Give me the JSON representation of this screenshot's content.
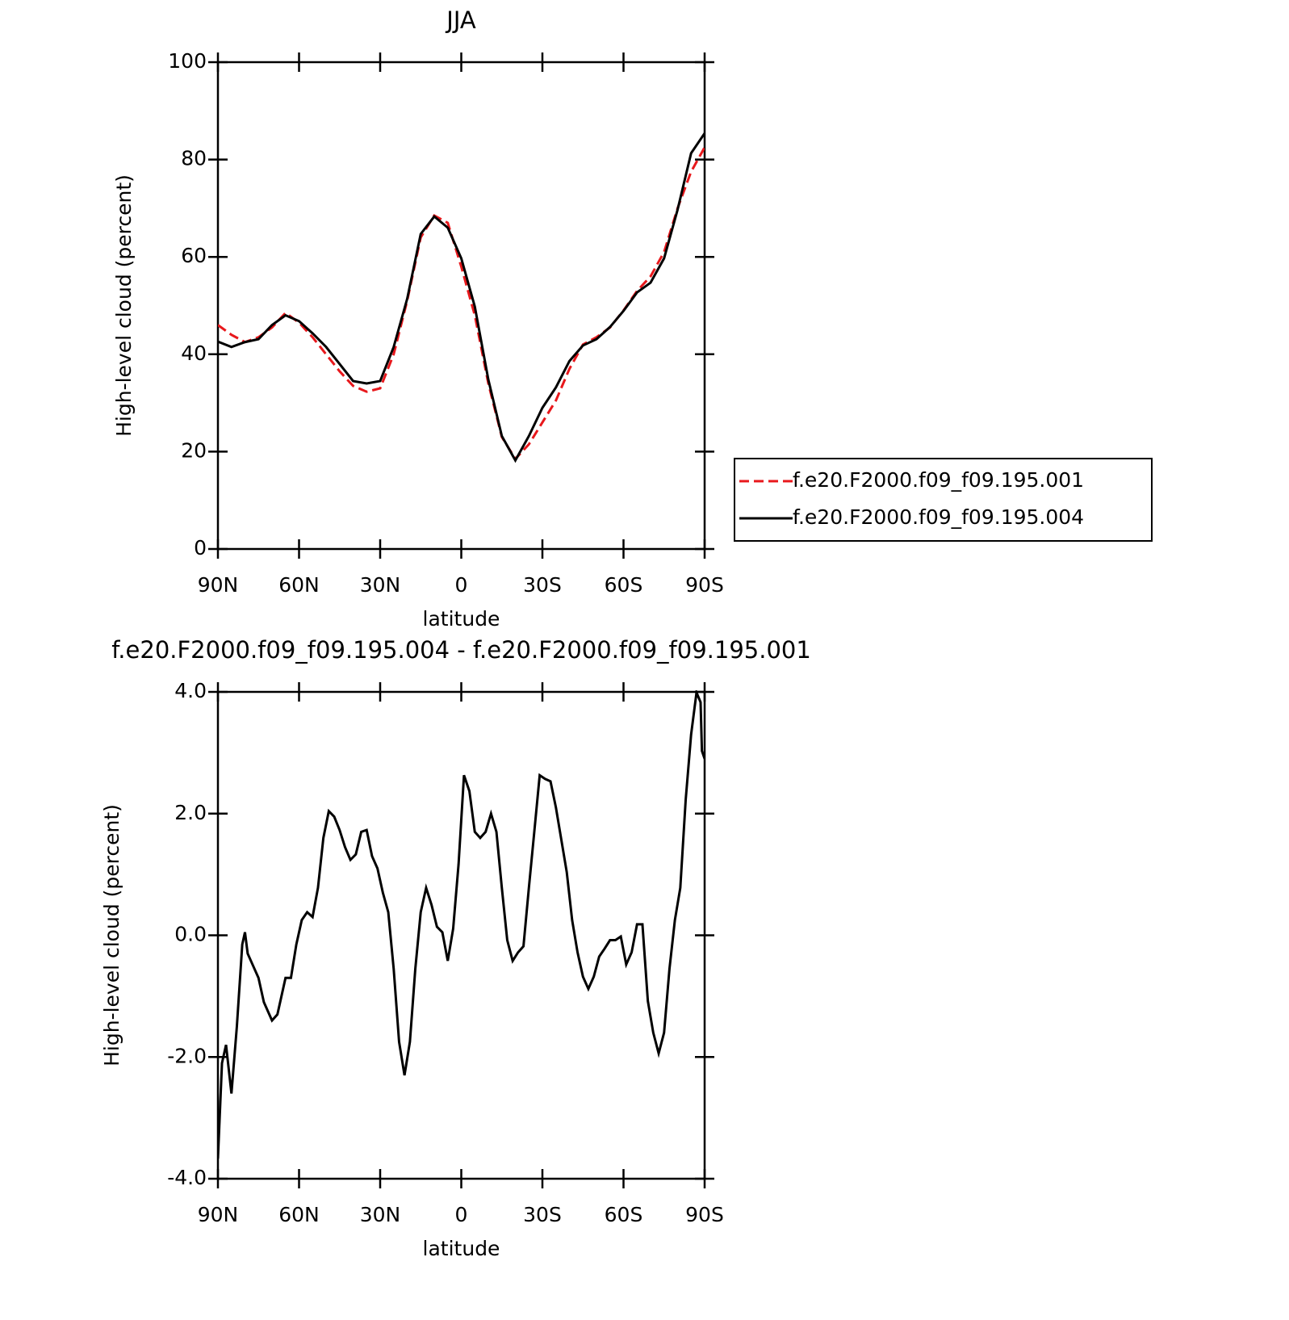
{
  "chart_data": [
    {
      "type": "line",
      "title": "JJA",
      "ylabel": "High-level cloud (percent)",
      "xlabel": "latitude",
      "xlim": [
        90,
        -90
      ],
      "xticks": [
        {
          "value": 90,
          "label": "90N"
        },
        {
          "value": 60,
          "label": "60N"
        },
        {
          "value": 30,
          "label": "30N"
        },
        0,
        {
          "value": -30,
          "label": "30S"
        },
        {
          "value": -60,
          "label": "60S"
        },
        {
          "value": -90,
          "label": "90S"
        }
      ],
      "ylim": [
        0,
        100
      ],
      "yticks": [
        0,
        20,
        40,
        60,
        80,
        100
      ],
      "legend": "right",
      "x": [
        90,
        85,
        80,
        75,
        70,
        65,
        60,
        55,
        50,
        45,
        40,
        35,
        30,
        25,
        20,
        15,
        10,
        5,
        0,
        -5,
        -10,
        -15,
        -20,
        -25,
        -30,
        -35,
        -40,
        -45,
        -50,
        -55,
        -60,
        -65,
        -70,
        -75,
        -80,
        -85,
        -90
      ],
      "series": [
        {
          "name": "f.e20.F2000.f09_f09.195.001",
          "color": "#e8181c",
          "dash": "dashed",
          "values": [
            46,
            44,
            42.5,
            43.5,
            45.5,
            48.5,
            46.5,
            43.5,
            40,
            36.5,
            33.5,
            32.3,
            33,
            40,
            51,
            64,
            68.5,
            67,
            58,
            48,
            34,
            23,
            18.5,
            21.5,
            26,
            30.5,
            37,
            42,
            43.5,
            45.5,
            49,
            53,
            56,
            61,
            70,
            77.5,
            82.5
          ]
        },
        {
          "name": "f.e20.F2000.f09_f09.195.004",
          "color": "#000000",
          "dash": "solid",
          "values": [
            42.6,
            41.5,
            42.5,
            43.1,
            46,
            48,
            46.8,
            44.3,
            41.5,
            38,
            34.5,
            34,
            34.5,
            41.5,
            51.4,
            64.7,
            68.3,
            66,
            59.7,
            49.8,
            34.8,
            23.2,
            18.2,
            23.2,
            29,
            33.2,
            38.6,
            41.8,
            43.1,
            45.6,
            48.9,
            52.7,
            54.7,
            59.7,
            69.7,
            81.3,
            85.4
          ]
        }
      ]
    },
    {
      "type": "line",
      "title": "f.e20.F2000.f09_f09.195.004 - f.e20.F2000.f09_f09.195.001",
      "ylabel": "High-level cloud (percent)",
      "xlabel": "latitude",
      "xlim": [
        90,
        -90
      ],
      "xticks": [
        {
          "value": 90,
          "label": "90N"
        },
        {
          "value": 60,
          "label": "60N"
        },
        {
          "value": 30,
          "label": "30N"
        },
        0,
        {
          "value": -30,
          "label": "30S"
        },
        {
          "value": -60,
          "label": "60S"
        },
        {
          "value": -90,
          "label": "90S"
        }
      ],
      "ylim": [
        -4,
        4
      ],
      "yticks": [
        {
          "value": -4,
          "label": "-4.0"
        },
        {
          "value": -2,
          "label": "-2.0"
        },
        {
          "value": 0,
          "label": "0.0"
        },
        {
          "value": 2,
          "label": "2.0"
        },
        {
          "value": 4,
          "label": "4.0"
        }
      ],
      "x": [
        90,
        88.5,
        87,
        85,
        83,
        81,
        80,
        79,
        77,
        75,
        73,
        70,
        68,
        65,
        63,
        61,
        59,
        57,
        55,
        53,
        51,
        49,
        47,
        45,
        43,
        41,
        39,
        37,
        35,
        33,
        31,
        29,
        27,
        25,
        23,
        21,
        19,
        17,
        15,
        13,
        11,
        9,
        7,
        5,
        3,
        1,
        -1,
        -3,
        -5,
        -7,
        -9,
        -11,
        -13,
        -15,
        -17,
        -19,
        -21,
        -23,
        -25,
        -27,
        -29,
        -31,
        -33,
        -35,
        -37,
        -39,
        -41,
        -43,
        -45,
        -47,
        -49,
        -51,
        -53,
        -55,
        -57,
        -59,
        -61,
        -63,
        -65,
        -67,
        -69,
        -71,
        -73,
        -75,
        -77,
        -79,
        -81,
        -83,
        -85,
        -87,
        -88.5,
        -89,
        -90
      ],
      "color": "#000000",
      "values": [
        -3.67,
        -2.1,
        -1.8,
        -2.6,
        -1.5,
        -0.15,
        0.05,
        -0.3,
        -0.5,
        -0.7,
        -1.1,
        -1.4,
        -1.3,
        -0.7,
        -0.7,
        -0.15,
        0.25,
        0.38,
        0.3,
        0.78,
        1.6,
        2.04,
        1.95,
        1.73,
        1.45,
        1.24,
        1.33,
        1.7,
        1.73,
        1.3,
        1.1,
        0.7,
        0.38,
        -0.55,
        -1.75,
        -2.3,
        -1.75,
        -0.55,
        0.38,
        0.78,
        0.5,
        0.14,
        0.05,
        -0.42,
        0.11,
        1.17,
        2.63,
        2.37,
        1.7,
        1.6,
        1.7,
        2.0,
        1.7,
        0.78,
        -0.08,
        -0.42,
        -0.28,
        -0.18,
        0.78,
        1.7,
        2.63,
        2.57,
        2.53,
        2.1,
        1.57,
        1.04,
        0.25,
        -0.28,
        -0.68,
        -0.88,
        -0.68,
        -0.35,
        -0.22,
        -0.08,
        -0.08,
        -0.02,
        -0.48,
        -0.28,
        0.18,
        0.18,
        -1.08,
        -1.6,
        -1.94,
        -1.6,
        -0.55,
        0.25,
        0.78,
        2.23,
        3.3,
        3.99,
        3.83,
        3.03,
        2.9
      ]
    }
  ]
}
